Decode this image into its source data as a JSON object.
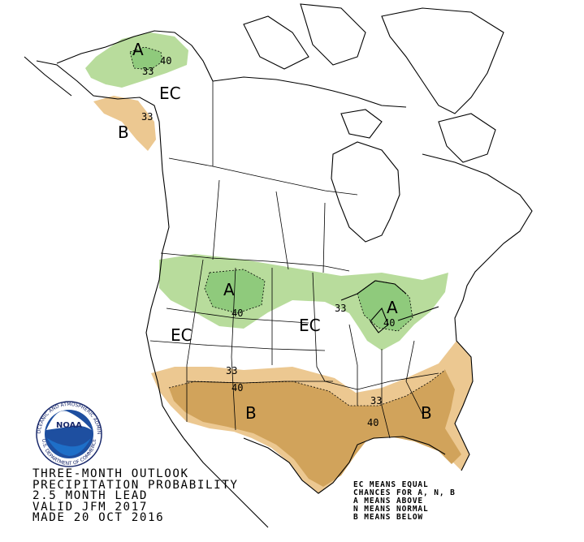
{
  "colors": {
    "above_light": "#b8dc9c",
    "above_dark": "#8fca7c",
    "below_light": "#ecc891",
    "below_dark": "#d1a35b",
    "line": "#000000"
  },
  "regions": {
    "alaska_above": "A",
    "alaska_below": "B",
    "alaska_ec": "EC",
    "north_above": "A",
    "great_lakes_above": "A",
    "west_ec": "EC",
    "central_ec": "EC",
    "southwest_below": "B",
    "southeast_below": "B"
  },
  "contours": {
    "ak_40": "40",
    "ak_33a": "33",
    "ak_33b": "33",
    "north_40": "40",
    "gl_33": "33",
    "gl_40": "40",
    "sw_33": "33",
    "sw_40": "40",
    "se_33": "33",
    "se_40": "40"
  },
  "caption": {
    "line1": "THREE-MONTH OUTLOOK",
    "line2": "PRECIPITATION PROBABILITY",
    "line3": "2.5 MONTH LEAD",
    "line4": "VALID JFM 2017",
    "line5": "MADE 20 OCT 2016"
  },
  "legend": {
    "line1": "EC MEANS EQUAL",
    "line2": "CHANCES FOR A, N, B",
    "line3": "A MEANS ABOVE",
    "line4": "N MEANS NORMAL",
    "line5": "B MEANS BELOW"
  },
  "logo": {
    "name": "NOAA",
    "ring_text": "NATIONAL OCEANIC AND ATMOSPHERIC ADMINISTRATION",
    "bottom_text": "U.S. DEPARTMENT OF COMMERCE"
  }
}
